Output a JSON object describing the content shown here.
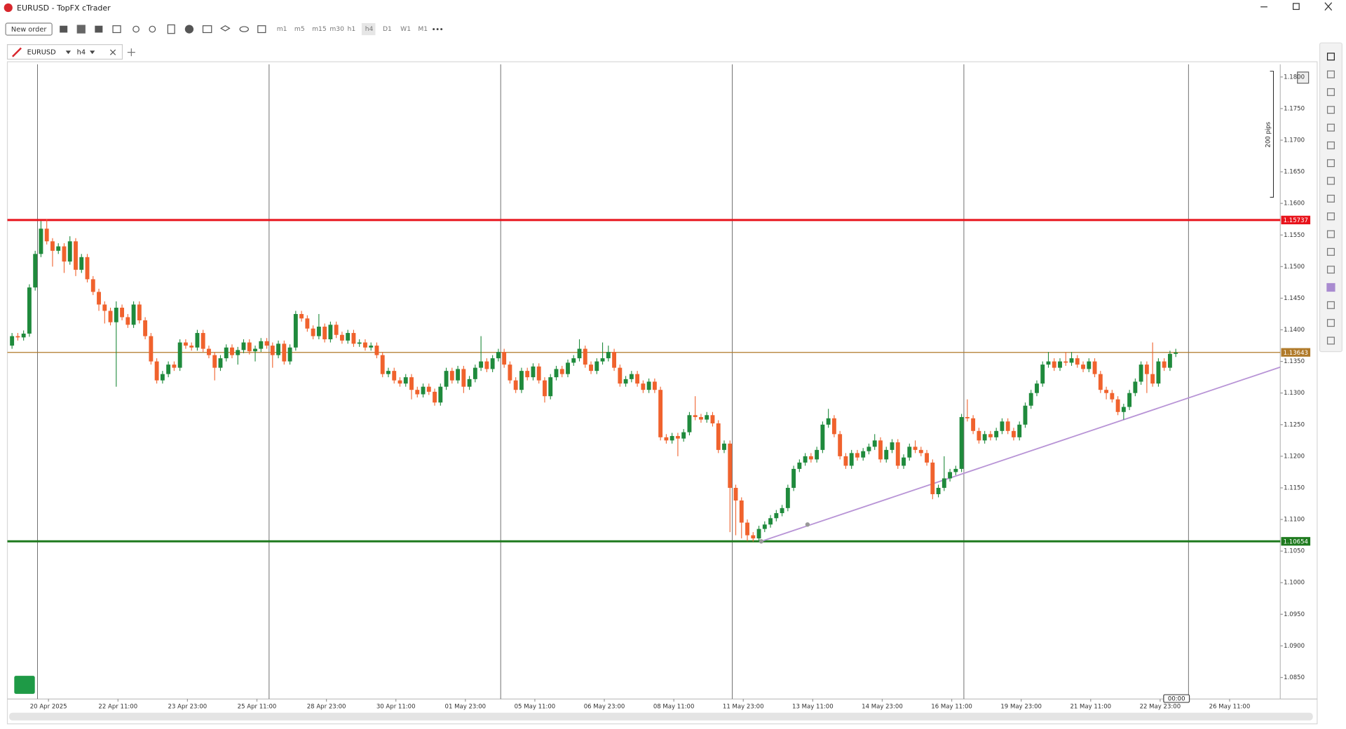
{
  "window": {
    "title": "EURUSD - TopFX cTrader"
  },
  "toolbar": {
    "new_order": "New order",
    "timeframes": [
      "m1",
      "m5",
      "m15",
      "m30",
      "h1",
      "h4",
      "D1",
      "W1",
      "M1"
    ]
  },
  "tab": {
    "symbol": "EURUSD",
    "timeframe": "h4"
  },
  "chart_data": {
    "type": "candlestick",
    "colors": {
      "up": "#1f8a3c",
      "down": "#f0622d"
    },
    "ohlc": [
      [
        1.1375,
        1.1395,
        1.137,
        1.139
      ],
      [
        1.139,
        1.1395,
        1.1383,
        1.1388
      ],
      [
        1.1388,
        1.1399,
        1.1383,
        1.1394
      ],
      [
        1.1394,
        1.1472,
        1.1389,
        1.1467
      ],
      [
        1.1467,
        1.1525,
        1.1462,
        1.152
      ],
      [
        1.152,
        1.1572,
        1.1515,
        1.156
      ],
      [
        1.156,
        1.1575,
        1.1535,
        1.154
      ],
      [
        1.154,
        1.1545,
        1.15,
        1.1525
      ],
      [
        1.1525,
        1.1537,
        1.152,
        1.1532
      ],
      [
        1.1532,
        1.1537,
        1.149,
        1.1508
      ],
      [
        1.1508,
        1.1548,
        1.1503,
        1.154
      ],
      [
        1.154,
        1.1545,
        1.1485,
        1.1495
      ],
      [
        1.1495,
        1.152,
        1.149,
        1.1515
      ],
      [
        1.1515,
        1.152,
        1.1475,
        1.148
      ],
      [
        1.148,
        1.1485,
        1.1455,
        1.146
      ],
      [
        1.146,
        1.1465,
        1.143,
        1.144
      ],
      [
        1.144,
        1.1445,
        1.141,
        1.143
      ],
      [
        1.143,
        1.1435,
        1.1407,
        1.1412
      ],
      [
        1.1412,
        1.1445,
        1.131,
        1.1435
      ],
      [
        1.1435,
        1.144,
        1.1415,
        1.142
      ],
      [
        1.142,
        1.1425,
        1.1403,
        1.1408
      ],
      [
        1.1408,
        1.1445,
        1.1403,
        1.144
      ],
      [
        1.144,
        1.1445,
        1.141,
        1.1415
      ],
      [
        1.1415,
        1.142,
        1.1385,
        1.139
      ],
      [
        1.139,
        1.1395,
        1.1345,
        1.135
      ],
      [
        1.135,
        1.1355,
        1.1315,
        1.132
      ],
      [
        1.132,
        1.1335,
        1.1315,
        1.133
      ],
      [
        1.133,
        1.135,
        1.1325,
        1.1345
      ],
      [
        1.1345,
        1.135,
        1.1335,
        1.134
      ],
      [
        1.134,
        1.1385,
        1.1335,
        1.138
      ],
      [
        1.138,
        1.1385,
        1.137,
        1.1375
      ],
      [
        1.1375,
        1.138,
        1.1367,
        1.1372
      ],
      [
        1.1372,
        1.14,
        1.1367,
        1.1395
      ],
      [
        1.1395,
        1.14,
        1.1365,
        1.137
      ],
      [
        1.137,
        1.1375,
        1.1355,
        1.136
      ],
      [
        1.136,
        1.1365,
        1.132,
        1.134
      ],
      [
        1.134,
        1.136,
        1.1335,
        1.1355
      ],
      [
        1.1355,
        1.1377,
        1.135,
        1.1372
      ],
      [
        1.1372,
        1.1377,
        1.1355,
        1.136
      ],
      [
        1.136,
        1.1373,
        1.1345,
        1.1368
      ],
      [
        1.1368,
        1.1385,
        1.1363,
        1.138
      ],
      [
        1.138,
        1.1385,
        1.1361,
        1.1366
      ],
      [
        1.1366,
        1.1375,
        1.135,
        1.137
      ],
      [
        1.137,
        1.1387,
        1.1365,
        1.1382
      ],
      [
        1.1382,
        1.1387,
        1.137,
        1.1375
      ],
      [
        1.1375,
        1.138,
        1.134,
        1.136
      ],
      [
        1.136,
        1.1383,
        1.1355,
        1.1378
      ],
      [
        1.1378,
        1.1383,
        1.1345,
        1.135
      ],
      [
        1.135,
        1.1377,
        1.1345,
        1.1372
      ],
      [
        1.1372,
        1.143,
        1.1367,
        1.1425
      ],
      [
        1.1425,
        1.143,
        1.1413,
        1.1418
      ],
      [
        1.1418,
        1.1423,
        1.1397,
        1.1402
      ],
      [
        1.1402,
        1.1407,
        1.1385,
        1.139
      ],
      [
        1.139,
        1.1425,
        1.1385,
        1.1405
      ],
      [
        1.1405,
        1.141,
        1.138,
        1.1385
      ],
      [
        1.1385,
        1.1413,
        1.138,
        1.1408
      ],
      [
        1.1408,
        1.1413,
        1.1387,
        1.1392
      ],
      [
        1.1392,
        1.1397,
        1.1378,
        1.1383
      ],
      [
        1.1383,
        1.14,
        1.1378,
        1.1395
      ],
      [
        1.1395,
        1.14,
        1.1373,
        1.1378
      ],
      [
        1.1378,
        1.1385,
        1.1373,
        1.138
      ],
      [
        1.138,
        1.1385,
        1.1367,
        1.1372
      ],
      [
        1.1372,
        1.138,
        1.1367,
        1.1375
      ],
      [
        1.1375,
        1.138,
        1.1355,
        1.136
      ],
      [
        1.136,
        1.1365,
        1.1325,
        1.133
      ],
      [
        1.133,
        1.134,
        1.1325,
        1.1335
      ],
      [
        1.1335,
        1.134,
        1.1315,
        1.132
      ],
      [
        1.132,
        1.1325,
        1.131,
        1.1315
      ],
      [
        1.1315,
        1.133,
        1.131,
        1.1325
      ],
      [
        1.1325,
        1.133,
        1.129,
        1.1305
      ],
      [
        1.1305,
        1.131,
        1.1293,
        1.1298
      ],
      [
        1.1298,
        1.1315,
        1.1293,
        1.131
      ],
      [
        1.131,
        1.1315,
        1.1297,
        1.1302
      ],
      [
        1.1302,
        1.1307,
        1.128,
        1.1285
      ],
      [
        1.1285,
        1.1315,
        1.128,
        1.131
      ],
      [
        1.131,
        1.134,
        1.1305,
        1.1335
      ],
      [
        1.1335,
        1.134,
        1.1315,
        1.132
      ],
      [
        1.132,
        1.1343,
        1.1315,
        1.1338
      ],
      [
        1.1338,
        1.1343,
        1.13,
        1.131
      ],
      [
        1.131,
        1.1327,
        1.1305,
        1.1322
      ],
      [
        1.1322,
        1.1345,
        1.1317,
        1.134
      ],
      [
        1.134,
        1.139,
        1.1335,
        1.135
      ],
      [
        1.135,
        1.1355,
        1.1333,
        1.1338
      ],
      [
        1.1338,
        1.136,
        1.1333,
        1.1355
      ],
      [
        1.1355,
        1.137,
        1.135,
        1.1365
      ],
      [
        1.1365,
        1.137,
        1.134,
        1.1345
      ],
      [
        1.1345,
        1.135,
        1.1315,
        1.132
      ],
      [
        1.132,
        1.1325,
        1.13,
        1.1305
      ],
      [
        1.1305,
        1.134,
        1.13,
        1.1335
      ],
      [
        1.1335,
        1.134,
        1.132,
        1.1325
      ],
      [
        1.1325,
        1.1347,
        1.132,
        1.1342
      ],
      [
        1.1342,
        1.1347,
        1.1315,
        1.132
      ],
      [
        1.132,
        1.1325,
        1.1285,
        1.1295
      ],
      [
        1.1295,
        1.133,
        1.129,
        1.1325
      ],
      [
        1.1325,
        1.1343,
        1.132,
        1.1338
      ],
      [
        1.1338,
        1.1343,
        1.1325,
        1.133
      ],
      [
        1.133,
        1.1353,
        1.1325,
        1.1348
      ],
      [
        1.1348,
        1.136,
        1.1343,
        1.1355
      ],
      [
        1.1355,
        1.1385,
        1.135,
        1.137
      ],
      [
        1.137,
        1.1375,
        1.134,
        1.1345
      ],
      [
        1.1345,
        1.135,
        1.133,
        1.1335
      ],
      [
        1.1335,
        1.1355,
        1.133,
        1.135
      ],
      [
        1.135,
        1.138,
        1.1345,
        1.1355
      ],
      [
        1.1355,
        1.1375,
        1.135,
        1.1365
      ],
      [
        1.1365,
        1.137,
        1.1335,
        1.134
      ],
      [
        1.134,
        1.1345,
        1.131,
        1.1315
      ],
      [
        1.1315,
        1.1327,
        1.131,
        1.1322
      ],
      [
        1.1322,
        1.1335,
        1.1317,
        1.133
      ],
      [
        1.133,
        1.1335,
        1.131,
        1.1315
      ],
      [
        1.1315,
        1.132,
        1.13,
        1.1305
      ],
      [
        1.1305,
        1.1323,
        1.13,
        1.1318
      ],
      [
        1.1318,
        1.1323,
        1.13,
        1.1305
      ],
      [
        1.1305,
        1.131,
        1.1225,
        1.123
      ],
      [
        1.123,
        1.1235,
        1.122,
        1.1225
      ],
      [
        1.1225,
        1.1237,
        1.122,
        1.1232
      ],
      [
        1.1232,
        1.1237,
        1.12,
        1.1228
      ],
      [
        1.1228,
        1.1243,
        1.1223,
        1.1238
      ],
      [
        1.1238,
        1.127,
        1.1233,
        1.1265
      ],
      [
        1.1265,
        1.1295,
        1.1257,
        1.1262
      ],
      [
        1.1262,
        1.1267,
        1.1253,
        1.1258
      ],
      [
        1.1258,
        1.127,
        1.1253,
        1.1265
      ],
      [
        1.1265,
        1.127,
        1.1247,
        1.1252
      ],
      [
        1.1252,
        1.1257,
        1.1205,
        1.121
      ],
      [
        1.121,
        1.1225,
        1.1205,
        1.122
      ],
      [
        1.122,
        1.1225,
        1.108,
        1.115
      ],
      [
        1.115,
        1.1155,
        1.1075,
        1.113
      ],
      [
        1.113,
        1.1135,
        1.107,
        1.1095
      ],
      [
        1.1095,
        1.11,
        1.1066,
        1.1075
      ],
      [
        1.1075,
        1.108,
        1.1065,
        1.107
      ],
      [
        1.107,
        1.109,
        1.1065,
        1.1085
      ],
      [
        1.1085,
        1.1097,
        1.108,
        1.1092
      ],
      [
        1.1092,
        1.1107,
        1.1087,
        1.1102
      ],
      [
        1.1102,
        1.1115,
        1.1097,
        1.111
      ],
      [
        1.111,
        1.1123,
        1.1105,
        1.1118
      ],
      [
        1.1118,
        1.1155,
        1.1113,
        1.115
      ],
      [
        1.115,
        1.1185,
        1.1145,
        1.118
      ],
      [
        1.118,
        1.1195,
        1.1175,
        1.119
      ],
      [
        1.119,
        1.1205,
        1.1185,
        1.12
      ],
      [
        1.12,
        1.1205,
        1.119,
        1.1195
      ],
      [
        1.1195,
        1.1215,
        1.119,
        1.121
      ],
      [
        1.121,
        1.1255,
        1.1205,
        1.125
      ],
      [
        1.125,
        1.1275,
        1.1245,
        1.126
      ],
      [
        1.126,
        1.1265,
        1.123,
        1.1235
      ],
      [
        1.1235,
        1.124,
        1.1195,
        1.12
      ],
      [
        1.12,
        1.1205,
        1.118,
        1.1185
      ],
      [
        1.1185,
        1.121,
        1.118,
        1.1205
      ],
      [
        1.1205,
        1.121,
        1.1193,
        1.1198
      ],
      [
        1.1198,
        1.1213,
        1.1193,
        1.1208
      ],
      [
        1.1208,
        1.122,
        1.1203,
        1.1215
      ],
      [
        1.1215,
        1.1235,
        1.121,
        1.1225
      ],
      [
        1.1225,
        1.123,
        1.119,
        1.1195
      ],
      [
        1.1195,
        1.1215,
        1.119,
        1.121
      ],
      [
        1.121,
        1.1227,
        1.1205,
        1.1222
      ],
      [
        1.1222,
        1.1227,
        1.118,
        1.1185
      ],
      [
        1.1185,
        1.1203,
        1.118,
        1.1198
      ],
      [
        1.1198,
        1.122,
        1.1193,
        1.1215
      ],
      [
        1.1215,
        1.1225,
        1.1205,
        1.121
      ],
      [
        1.121,
        1.1215,
        1.12,
        1.1205
      ],
      [
        1.1205,
        1.121,
        1.1185,
        1.119
      ],
      [
        1.119,
        1.1195,
        1.1132,
        1.114
      ],
      [
        1.114,
        1.1155,
        1.1135,
        1.115
      ],
      [
        1.115,
        1.12,
        1.1145,
        1.1165
      ],
      [
        1.1165,
        1.118,
        1.116,
        1.1175
      ],
      [
        1.1175,
        1.1185,
        1.117,
        1.118
      ],
      [
        1.118,
        1.1267,
        1.1175,
        1.1262
      ],
      [
        1.1262,
        1.129,
        1.1255,
        1.126
      ],
      [
        1.126,
        1.1265,
        1.1235,
        1.124
      ],
      [
        1.124,
        1.1245,
        1.122,
        1.1225
      ],
      [
        1.1225,
        1.124,
        1.122,
        1.1235
      ],
      [
        1.1235,
        1.124,
        1.1225,
        1.123
      ],
      [
        1.123,
        1.1245,
        1.1225,
        1.124
      ],
      [
        1.124,
        1.126,
        1.1235,
        1.1255
      ],
      [
        1.1255,
        1.126,
        1.1235,
        1.124
      ],
      [
        1.124,
        1.1245,
        1.1225,
        1.123
      ],
      [
        1.123,
        1.1255,
        1.1225,
        1.125
      ],
      [
        1.125,
        1.1285,
        1.1245,
        1.128
      ],
      [
        1.128,
        1.1305,
        1.1275,
        1.13
      ],
      [
        1.13,
        1.132,
        1.1295,
        1.1315
      ],
      [
        1.1315,
        1.135,
        1.131,
        1.1345
      ],
      [
        1.1345,
        1.1365,
        1.134,
        1.135
      ],
      [
        1.135,
        1.1355,
        1.1335,
        1.134
      ],
      [
        1.134,
        1.1355,
        1.1335,
        1.135
      ],
      [
        1.135,
        1.1365,
        1.1343,
        1.1348
      ],
      [
        1.1348,
        1.1365,
        1.1343,
        1.1355
      ],
      [
        1.1355,
        1.136,
        1.134,
        1.1345
      ],
      [
        1.1345,
        1.135,
        1.1333,
        1.1338
      ],
      [
        1.1338,
        1.1355,
        1.1333,
        1.135
      ],
      [
        1.135,
        1.1355,
        1.1325,
        1.133
      ],
      [
        1.133,
        1.1335,
        1.13,
        1.1305
      ],
      [
        1.1305,
        1.131,
        1.129,
        1.13
      ],
      [
        1.13,
        1.1305,
        1.1285,
        1.129
      ],
      [
        1.129,
        1.1295,
        1.1265,
        1.127
      ],
      [
        1.127,
        1.1283,
        1.1258,
        1.1278
      ],
      [
        1.1278,
        1.1305,
        1.1273,
        1.13
      ],
      [
        1.13,
        1.1323,
        1.1295,
        1.1318
      ],
      [
        1.1318,
        1.135,
        1.1313,
        1.1345
      ],
      [
        1.1345,
        1.135,
        1.13,
        1.133
      ],
      [
        1.133,
        1.138,
        1.131,
        1.1315
      ],
      [
        1.1315,
        1.1355,
        1.131,
        1.135
      ],
      [
        1.135,
        1.1355,
        1.1335,
        1.134
      ],
      [
        1.134,
        1.1367,
        1.1335,
        1.1362
      ],
      [
        1.1362,
        1.137,
        1.1357,
        1.1364
      ]
    ],
    "xlim": [
      -0.8,
      219.05
    ],
    "ylim": [
      1.0816,
      1.182
    ],
    "yticks": [
      {
        "value": 1.085,
        "label": "1.0850"
      },
      {
        "value": 1.09,
        "label": "1.0900"
      },
      {
        "value": 1.095,
        "label": "1.0950"
      },
      {
        "value": 1.1,
        "label": "1.1000"
      },
      {
        "value": 1.105,
        "label": "1.1050"
      },
      {
        "value": 1.11,
        "label": "1.1100"
      },
      {
        "value": 1.115,
        "label": "1.1150"
      },
      {
        "value": 1.12,
        "label": "1.1200"
      },
      {
        "value": 1.125,
        "label": "1.1250"
      },
      {
        "value": 1.13,
        "label": "1.1300"
      },
      {
        "value": 1.135,
        "label": "1.1350"
      },
      {
        "value": 1.14,
        "label": "1.1400"
      },
      {
        "value": 1.145,
        "label": "1.1450"
      },
      {
        "value": 1.15,
        "label": "1.1500"
      },
      {
        "value": 1.155,
        "label": "1.1550"
      },
      {
        "value": 1.16,
        "label": "1.1600"
      },
      {
        "value": 1.165,
        "label": "1.1650"
      },
      {
        "value": 1.17,
        "label": "1.1700"
      },
      {
        "value": 1.175,
        "label": "1.1750"
      },
      {
        "value": 1.18,
        "label": "1.1800"
      }
    ],
    "xticks": [
      {
        "value": 6.3,
        "label": "20 Apr 2025"
      },
      {
        "value": 18.3,
        "label": "22 Apr 11:00"
      },
      {
        "value": 30.3,
        "label": "23 Apr 23:00"
      },
      {
        "value": 42.3,
        "label": "25 Apr 11:00"
      },
      {
        "value": 54.3,
        "label": "28 Apr 23:00"
      },
      {
        "value": 66.3,
        "label": "30 Apr 11:00"
      },
      {
        "value": 78.3,
        "label": "01 May 23:00"
      },
      {
        "value": 90.3,
        "label": "05 May 11:00"
      },
      {
        "value": 102.3,
        "label": "06 May 23:00"
      },
      {
        "value": 114.3,
        "label": "08 May 11:00"
      },
      {
        "value": 126.3,
        "label": "11 May 23:00"
      },
      {
        "value": 138.3,
        "label": "13 May 11:00"
      },
      {
        "value": 150.3,
        "label": "14 May 23:00"
      },
      {
        "value": 162.3,
        "label": "16 May 11:00"
      },
      {
        "value": 174.3,
        "label": "19 May 23:00"
      },
      {
        "value": 186.3,
        "label": "21 May 11:00"
      },
      {
        "value": 198.3,
        "label": "22 May 23:00"
      },
      {
        "value": 210.3,
        "label": "26 May 11:00"
      }
    ],
    "separators": [
      4.4,
      44.4,
      84.4,
      124.4,
      164.4,
      203.2
    ],
    "levels": [
      {
        "value": 1.15737,
        "label": "1.15737",
        "color": "#e8141c"
      },
      {
        "value": 1.13643,
        "label": "1.13643",
        "color": "#b07a2a"
      },
      {
        "value": 1.10654,
        "label": "1.10654",
        "color": "#1e7a1e"
      }
    ],
    "trendline": {
      "start": [
        129.4,
        1.10654
      ],
      "mid": [
        137.4,
        1.1092
      ],
      "end": [
        219.05,
        1.1341
      ],
      "color": "#b894d6"
    },
    "ruler_label": "200 pips",
    "clock_label": "00:00"
  }
}
